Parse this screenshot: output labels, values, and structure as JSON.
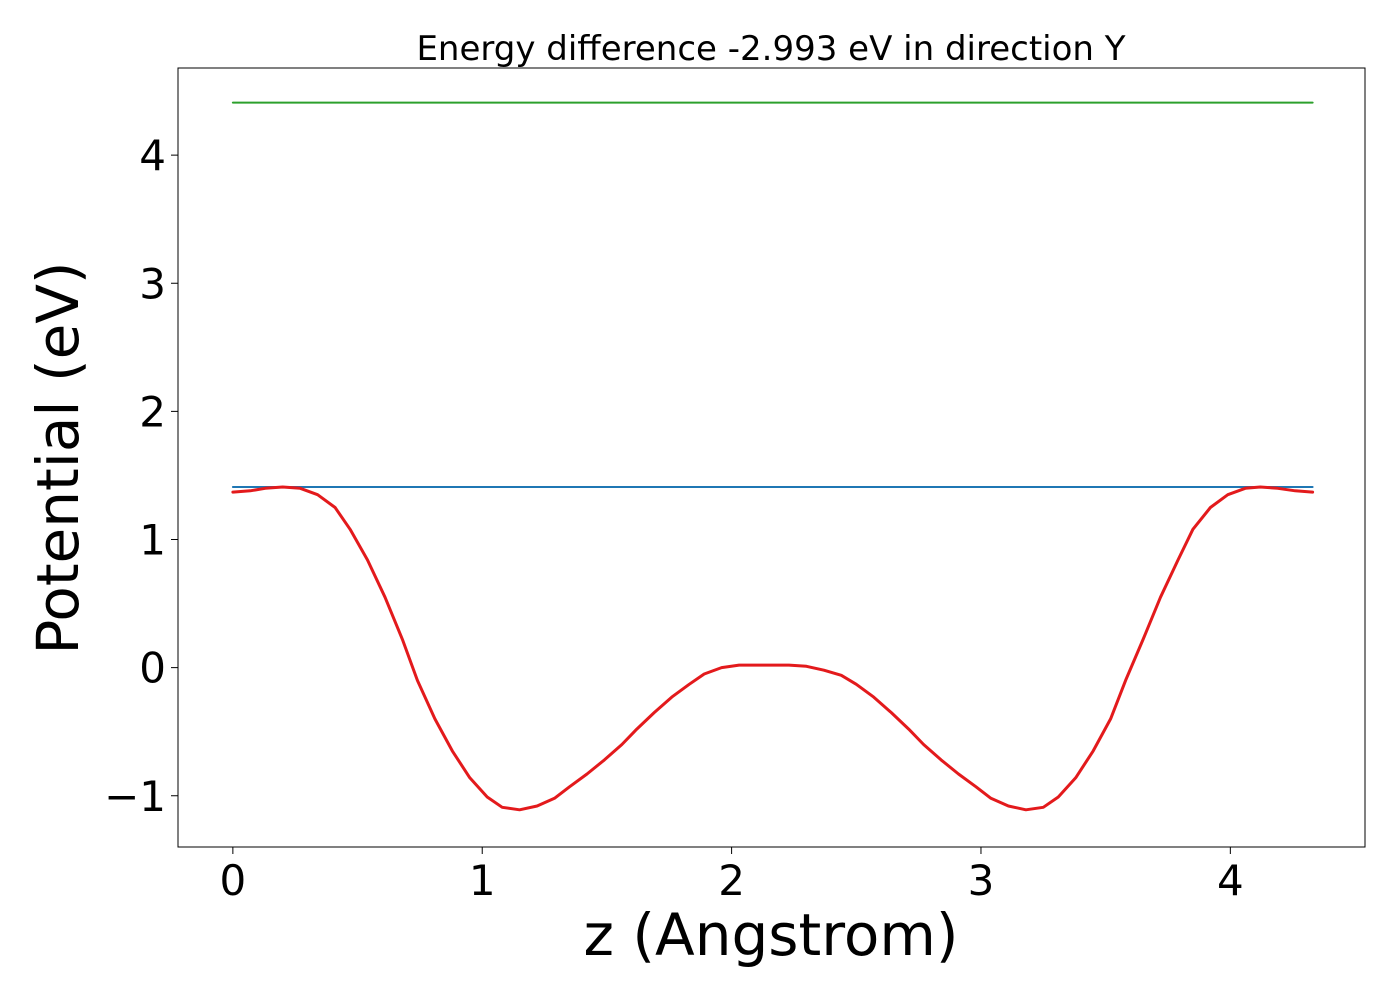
{
  "chart_data": {
    "type": "line",
    "title": "Energy difference -2.993 eV in direction Y",
    "xlabel": "z (Angstrom)",
    "ylabel": "Potential (eV)",
    "xlim": [
      -0.22,
      4.54
    ],
    "ylim": [
      -1.4,
      4.68
    ],
    "xticks": [
      0,
      1,
      2,
      3,
      4
    ],
    "xtick_labels": [
      "0",
      "1",
      "2",
      "3",
      "4"
    ],
    "yticks": [
      -1,
      0,
      1,
      2,
      3,
      4
    ],
    "ytick_labels": [
      "−1",
      "0",
      "1",
      "2",
      "3",
      "4"
    ],
    "grid": false,
    "legend": "none",
    "series": [
      {
        "color": "#2ca02c",
        "x": [
          0,
          4.33
        ],
        "y": [
          4.41,
          4.41
        ]
      },
      {
        "color": "#1f77b4",
        "x": [
          0,
          4.33
        ],
        "y": [
          1.41,
          1.41
        ]
      },
      {
        "color": "#e31a1c",
        "x": [
          0,
          0.07,
          0.13,
          0.2,
          0.27,
          0.34,
          0.41,
          0.47,
          0.54,
          0.61,
          0.68,
          0.74,
          0.81,
          0.88,
          0.95,
          1.02,
          1.08,
          1.15,
          1.22,
          1.29,
          1.35,
          1.42,
          1.49,
          1.56,
          1.62,
          1.69,
          1.76,
          1.83,
          1.89,
          1.96,
          2.03,
          2.1,
          2.16,
          2.23,
          2.3,
          2.37,
          2.44,
          2.5,
          2.57,
          2.64,
          2.71,
          2.77,
          2.84,
          2.91,
          2.98,
          3.04,
          3.11,
          3.18,
          3.25,
          3.31,
          3.38,
          3.45,
          3.52,
          3.58,
          3.65,
          3.72,
          3.79,
          3.85,
          3.92,
          3.99,
          4.06,
          4.12,
          4.19,
          4.26,
          4.33
        ],
        "y": [
          1.37,
          1.38,
          1.4,
          1.41,
          1.4,
          1.35,
          1.25,
          1.08,
          0.84,
          0.55,
          0.22,
          -0.1,
          -0.4,
          -0.65,
          -0.86,
          -1.01,
          -1.09,
          -1.11,
          -1.08,
          -1.02,
          -0.93,
          -0.83,
          -0.72,
          -0.6,
          -0.48,
          -0.35,
          -0.23,
          -0.13,
          -0.05,
          0,
          0.02,
          0.02,
          0.02,
          0.02,
          0.01,
          -0.02,
          -0.06,
          -0.13,
          -0.23,
          -0.35,
          -0.48,
          -0.6,
          -0.72,
          -0.83,
          -0.93,
          -1.02,
          -1.08,
          -1.11,
          -1.09,
          -1.01,
          -0.86,
          -0.65,
          -0.4,
          -0.1,
          0.22,
          0.55,
          0.84,
          1.08,
          1.25,
          1.35,
          1.4,
          1.41,
          1.4,
          1.38,
          1.37
        ]
      }
    ]
  }
}
